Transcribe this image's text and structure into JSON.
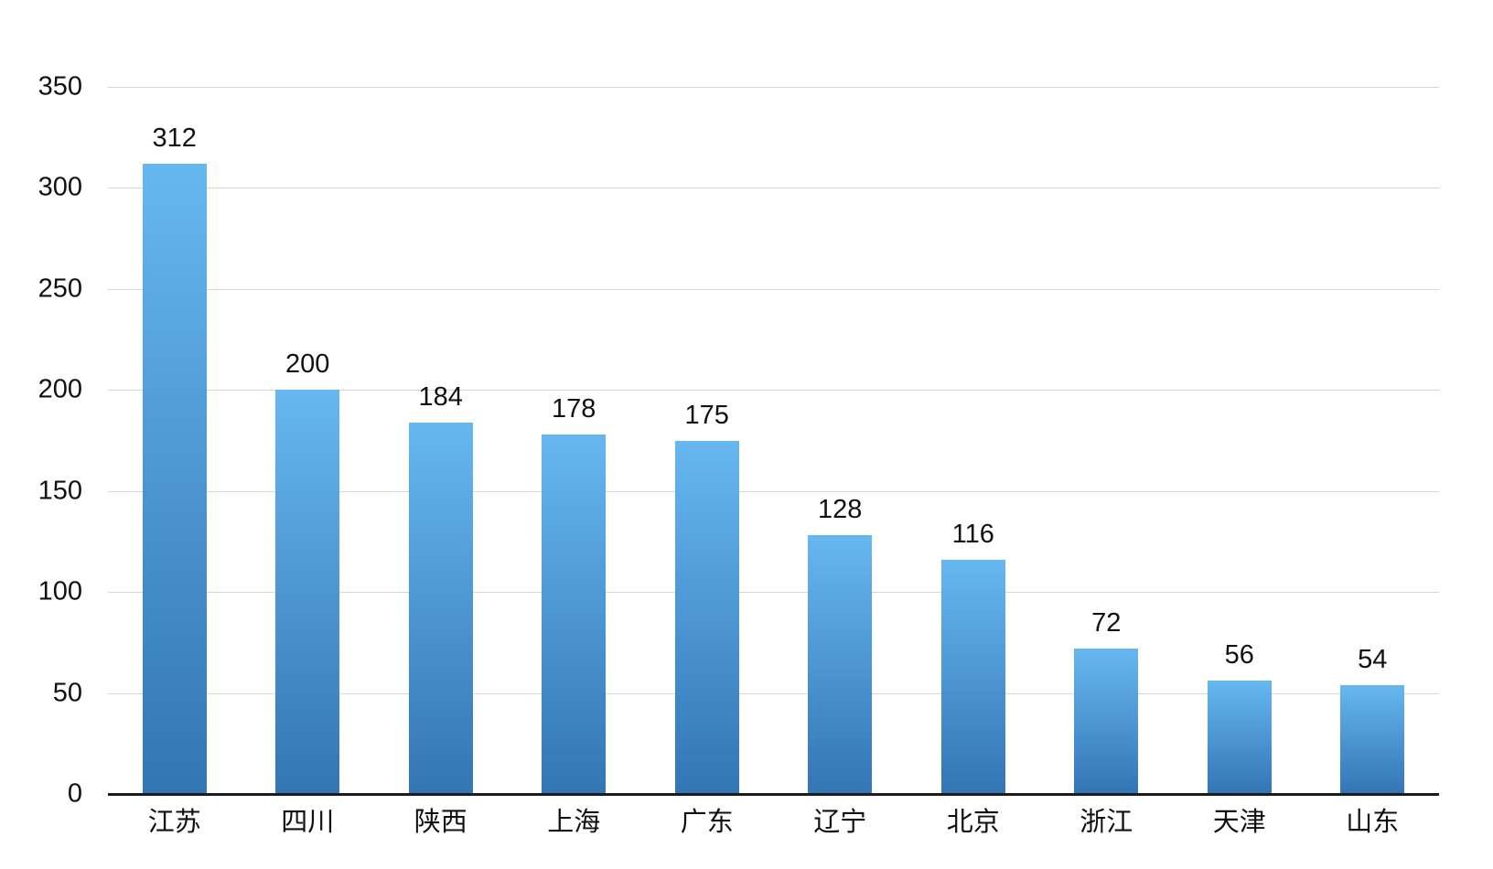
{
  "chart_data": {
    "type": "bar",
    "title": "",
    "xlabel": "",
    "ylabel": "",
    "categories": [
      "江苏",
      "四川",
      "陕西",
      "上海",
      "广东",
      "辽宁",
      "北京",
      "浙江",
      "天津",
      "山东"
    ],
    "values": [
      312,
      200,
      184,
      178,
      175,
      128,
      116,
      72,
      56,
      54
    ],
    "ylim": [
      0,
      350
    ],
    "yticks": [
      0,
      50,
      100,
      150,
      200,
      250,
      300,
      350
    ],
    "grid": true,
    "legend": "none",
    "bar_label_position": "above",
    "colors": {
      "bar_gradient_top": "#66B7F0",
      "bar_gradient_bottom": "#3375B5",
      "gridline": "#D6D6D6",
      "axis_line": "#1C1C1C",
      "label_text": "#111111"
    }
  }
}
